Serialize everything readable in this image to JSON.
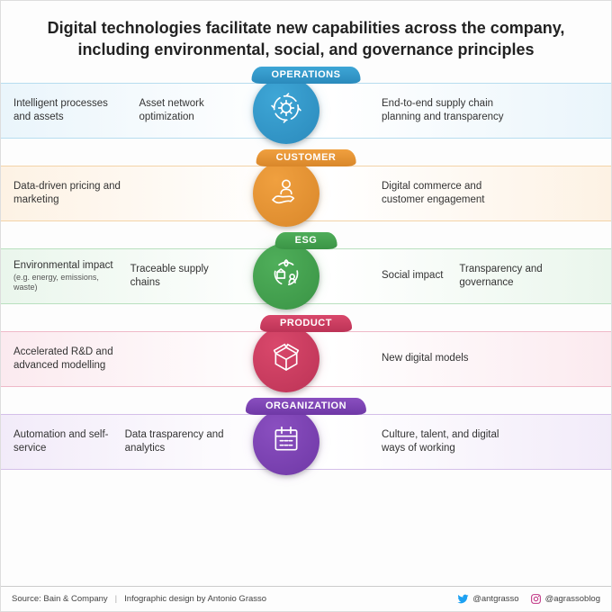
{
  "title": "Digital technologies facilitate new capabilities across the company, including environmental, social, and governance principles",
  "title_fontsize": 18,
  "title_color": "#222222",
  "background_color": "#fdfdfd",
  "band_height": 62,
  "circle_diameter": 74,
  "rows": [
    {
      "label": "OPERATIONS",
      "color": "#3ea6d6",
      "color_dark": "#2b8abc",
      "band_light": "#eaf5fb",
      "band_border": "#b7ddef",
      "icon": "gear-cycle",
      "left_items": [
        {
          "text": "Intelligent processes and assets"
        },
        {
          "text": "Asset network optimization"
        }
      ],
      "right_items": [
        {
          "text": "End-to-end supply chain planning and transparency"
        }
      ]
    },
    {
      "label": "CUSTOMER",
      "color": "#f0a03f",
      "color_dark": "#d9872a",
      "band_light": "#fdf2e4",
      "band_border": "#f3d3a8",
      "icon": "customer",
      "left_items": [
        {
          "text": "Data-driven pricing and marketing"
        }
      ],
      "right_items": [
        {
          "text": "Digital commerce and customer engagement"
        }
      ]
    },
    {
      "label": "ESG",
      "color": "#4fae5a",
      "color_dark": "#3a9445",
      "band_light": "#eaf6ec",
      "band_border": "#b9e0bf",
      "icon": "esg",
      "left_items": [
        {
          "text": "Environmental impact",
          "sub": "(e.g. energy, emissions, waste)"
        },
        {
          "text": "Traceable supply chains"
        }
      ],
      "right_items": [
        {
          "text": "Social impact"
        },
        {
          "text": "Transparency and governance"
        }
      ]
    },
    {
      "label": "PRODUCT",
      "color": "#d9486b",
      "color_dark": "#bc3356",
      "band_light": "#fbeaef",
      "band_border": "#efb9c8",
      "icon": "box",
      "left_items": [
        {
          "text": "Accelerated R&D and advanced modelling"
        }
      ],
      "right_items": [
        {
          "text": "New digital models"
        }
      ]
    },
    {
      "label": "ORGANIZATION",
      "color": "#8a4fc0",
      "color_dark": "#6f38a6",
      "band_light": "#f2ebf9",
      "band_border": "#d4bfe9",
      "icon": "calendar",
      "left_items": [
        {
          "text": "Automation and self-service"
        },
        {
          "text": "Data trasparency and analytics"
        }
      ],
      "right_items": [
        {
          "text": "Culture, talent, and digital ways of working"
        }
      ]
    }
  ],
  "footer": {
    "source": "Source: Bain & Company",
    "credit": "Infographic design by Antonio Grasso",
    "twitter": "@antgrasso",
    "instagram": "@agrassoblog",
    "twitter_color": "#1da1f2",
    "instagram_color": "#c13584"
  }
}
